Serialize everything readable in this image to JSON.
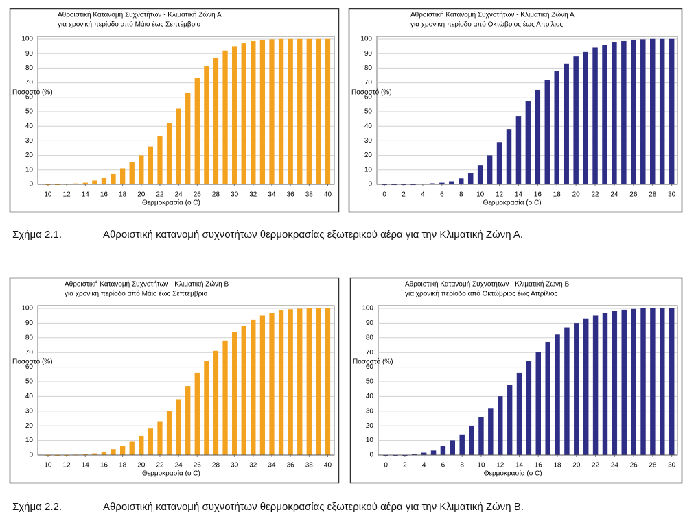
{
  "chart_data": [
    {
      "type": "bar",
      "title": "Αθροιστική Κατανομή Συχνοτήτων - Κλιματική Ζώνη Α",
      "subtitle": "για χρονική περίοδο από Μάιο έως Σεπτέμβριο",
      "y_label": "Ποσοστό (%)",
      "x_label": "Θερμοκρασία (ο C)",
      "color": "#f2a21e",
      "x": [
        10,
        11,
        12,
        13,
        14,
        15,
        16,
        17,
        18,
        19,
        20,
        21,
        22,
        23,
        24,
        25,
        26,
        27,
        28,
        29,
        30,
        31,
        32,
        33,
        34,
        35,
        36,
        37,
        38,
        39,
        40
      ],
      "values": [
        0,
        0,
        0.2,
        0.5,
        1,
        2.5,
        4.5,
        7,
        11,
        15,
        20,
        26,
        33,
        42,
        52,
        63,
        73,
        81,
        87,
        92,
        95,
        97,
        98.5,
        99.3,
        99.7,
        100,
        100,
        100,
        100,
        100,
        100
      ],
      "xlim": [
        8.9,
        40.7
      ],
      "xticks": [
        10,
        12,
        14,
        16,
        18,
        20,
        22,
        24,
        26,
        28,
        30,
        32,
        34,
        36,
        38,
        40
      ],
      "ylim": [
        0,
        100
      ],
      "yticks": [
        0,
        10,
        20,
        30,
        40,
        50,
        60,
        70,
        80,
        90,
        100
      ],
      "grid": true
    },
    {
      "type": "bar",
      "title": "Αθροιστική Κατανομή Συχνοτήτων - Κλιματική Ζώνη Α",
      "subtitle": "για χρονική περίοδο από Οκτώβριος έως Απρίλιος",
      "y_label": "Ποσοστό (%)",
      "x_label": "Θερμοκρασία (ο C)",
      "color": "#2e2e86",
      "x": [
        0,
        1,
        2,
        3,
        4,
        5,
        6,
        7,
        8,
        9,
        10,
        11,
        12,
        13,
        14,
        15,
        16,
        17,
        18,
        19,
        20,
        21,
        22,
        23,
        24,
        25,
        26,
        27,
        28,
        29,
        30
      ],
      "values": [
        0,
        0,
        0,
        0,
        0.3,
        0.6,
        1,
        2,
        4,
        7.5,
        13,
        20,
        29,
        38,
        47,
        57,
        65,
        72,
        78,
        83,
        88,
        91,
        94,
        96,
        97.5,
        98.5,
        99.3,
        99.7,
        100,
        100,
        100
      ],
      "xlim": [
        -0.8,
        30.6
      ],
      "xticks": [
        0,
        2,
        4,
        6,
        8,
        10,
        12,
        14,
        16,
        18,
        20,
        22,
        24,
        26,
        28,
        30
      ],
      "ylim": [
        0,
        100
      ],
      "yticks": [
        0,
        10,
        20,
        30,
        40,
        50,
        60,
        70,
        80,
        90,
        100
      ],
      "grid": true
    },
    {
      "type": "bar",
      "title": "Αθροιστική Κατανομή Συχνοτήτων - Κλιματική Ζώνη Β",
      "subtitle": "για χρονική περίοδο από Μάιο έως Σεπτέμβριο",
      "y_label": "Ποσοστό (%)",
      "x_label": "Θερμοκρασία (ο C)",
      "color": "#f2a21e",
      "x": [
        10,
        11,
        12,
        13,
        14,
        15,
        16,
        17,
        18,
        19,
        20,
        21,
        22,
        23,
        24,
        25,
        26,
        27,
        28,
        29,
        30,
        31,
        32,
        33,
        34,
        35,
        36,
        37,
        38,
        39,
        40
      ],
      "values": [
        0,
        0,
        0,
        0.2,
        0.5,
        1,
        2,
        4,
        6,
        9,
        13,
        18,
        23,
        30,
        38,
        47,
        56,
        64,
        71,
        78,
        84,
        88,
        92,
        95,
        97,
        98.5,
        99.3,
        99.7,
        100,
        100,
        100
      ],
      "xlim": [
        8.9,
        40.7
      ],
      "xticks": [
        10,
        12,
        14,
        16,
        18,
        20,
        22,
        24,
        26,
        28,
        30,
        32,
        34,
        36,
        38,
        40
      ],
      "ylim": [
        0,
        100
      ],
      "yticks": [
        0,
        10,
        20,
        30,
        40,
        50,
        60,
        70,
        80,
        90,
        100
      ],
      "grid": true
    },
    {
      "type": "bar",
      "title": "Αθροιστική Κατανομή Συχνοτήτων - Κλιματική Ζώνη Β",
      "subtitle": "για χρονική περίοδο από Οκτώβριος έως Απρίλιος",
      "y_label": "Ποσοστό (%)",
      "x_label": "Θερμοκρασία (ο C)",
      "color": "#2e2e86",
      "x": [
        0,
        1,
        2,
        3,
        4,
        5,
        6,
        7,
        8,
        9,
        10,
        11,
        12,
        13,
        14,
        15,
        16,
        17,
        18,
        19,
        20,
        21,
        22,
        23,
        24,
        25,
        26,
        27,
        28,
        29,
        30
      ],
      "values": [
        0,
        0,
        0,
        0.5,
        1.5,
        3,
        6,
        10,
        14,
        20,
        26,
        32,
        40,
        48,
        56,
        64,
        70,
        77,
        82,
        87,
        90,
        93,
        95,
        97,
        98,
        99,
        99.5,
        100,
        100,
        100,
        100
      ],
      "xlim": [
        -0.8,
        30.6
      ],
      "xticks": [
        0,
        2,
        4,
        6,
        8,
        10,
        12,
        14,
        16,
        18,
        20,
        22,
        24,
        26,
        28,
        30
      ],
      "ylim": [
        0,
        100
      ],
      "yticks": [
        0,
        10,
        20,
        30,
        40,
        50,
        60,
        70,
        80,
        90,
        100
      ],
      "grid": true
    }
  ],
  "captions": [
    {
      "label": "Σχήμα 2.1.",
      "text": "Αθροιστική κατανομή συχνοτήτων θερμοκρασίας εξωτερικού αέρα για την Κλιματική Ζώνη Α."
    },
    {
      "label": "Σχήμα 2.2.",
      "text": "Αθροιστική κατανομή συχνοτήτων θερμοκρασίας εξωτερικού αέρα για την Κλιματική Ζώνη Β."
    }
  ]
}
